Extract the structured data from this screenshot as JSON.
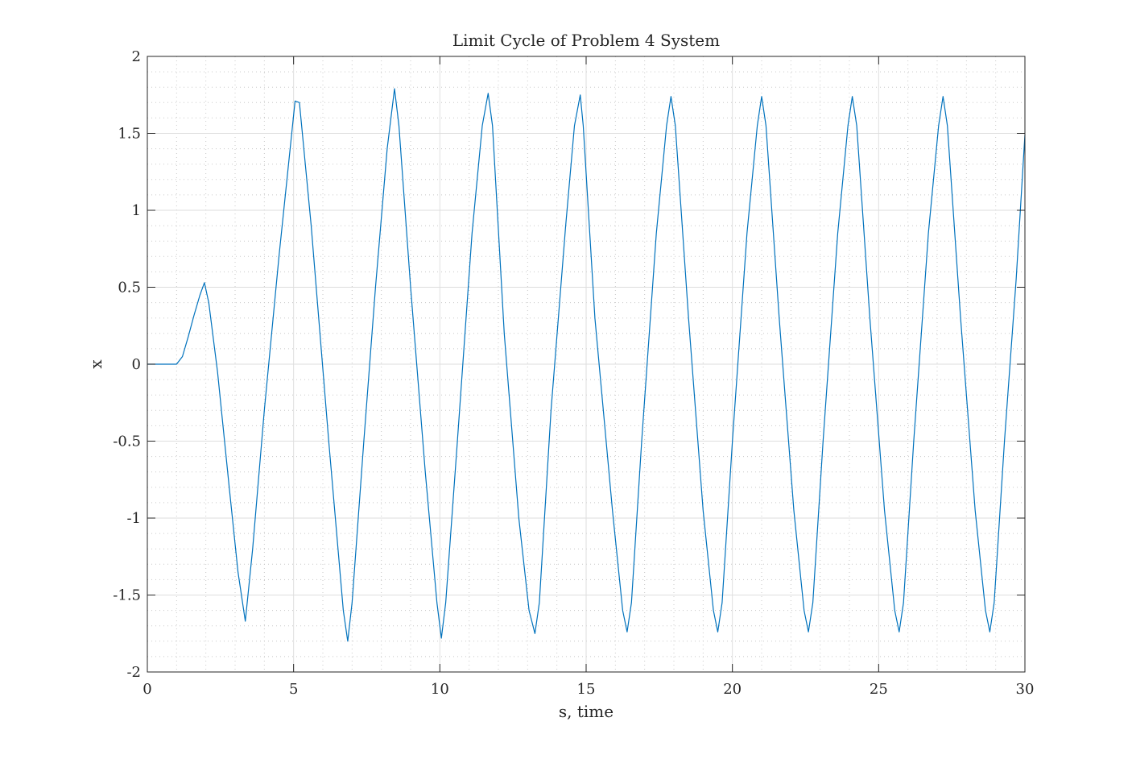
{
  "chart_data": {
    "type": "line",
    "title": "Limit Cycle of Problem 4 System",
    "xlabel": "s, time",
    "ylabel": "x",
    "xlim": [
      0,
      30
    ],
    "ylim": [
      -2,
      2
    ],
    "xticks": [
      0,
      5,
      10,
      15,
      20,
      25,
      30
    ],
    "xtick_labels": [
      "0",
      "5",
      "10",
      "15",
      "20",
      "25",
      "30"
    ],
    "yticks": [
      -2,
      -1.5,
      -1,
      -0.5,
      0,
      0.5,
      1,
      1.5,
      2
    ],
    "ytick_labels": [
      "-2",
      "-1.5",
      "-1",
      "-0.5",
      "0",
      "0.5",
      "1",
      "1.5",
      "2"
    ],
    "grid": true,
    "minor_grid": true,
    "line_color": "#0072BD",
    "series": [
      {
        "x": [
          0,
          1.0,
          1.2,
          1.4,
          1.6,
          1.8,
          1.95,
          2.1,
          2.4,
          2.8,
          3.1,
          3.35,
          3.6,
          4.0,
          4.5,
          5.05,
          5.2,
          5.6,
          6.2,
          6.7,
          6.85,
          7.0,
          7.4,
          7.8,
          8.2,
          8.45,
          8.6,
          9.0,
          9.5,
          9.9,
          10.05,
          10.2,
          10.6,
          11.1,
          11.45,
          11.65,
          11.8,
          12.2,
          12.7,
          13.05,
          13.25,
          13.4,
          13.8,
          14.3,
          14.6,
          14.8,
          14.9,
          15.3,
          15.9,
          16.25,
          16.4,
          16.55,
          16.9,
          17.4,
          17.75,
          17.9,
          18.05,
          18.5,
          19.0,
          19.35,
          19.5,
          19.65,
          20.0,
          20.5,
          20.85,
          21.0,
          21.15,
          21.6,
          22.1,
          22.45,
          22.6,
          22.75,
          23.1,
          23.6,
          23.95,
          24.1,
          24.25,
          24.7,
          25.2,
          25.55,
          25.7,
          25.85,
          26.2,
          26.7,
          27.05,
          27.2,
          27.35,
          27.8,
          28.3,
          28.65,
          28.8,
          28.95,
          29.3,
          29.7,
          30.0
        ],
        "y": [
          0,
          0,
          0.05,
          0.18,
          0.32,
          0.45,
          0.53,
          0.4,
          -0.05,
          -0.8,
          -1.35,
          -1.67,
          -1.2,
          -0.3,
          0.7,
          1.71,
          1.7,
          0.9,
          -0.5,
          -1.6,
          -1.8,
          -1.55,
          -0.5,
          0.5,
          1.4,
          1.79,
          1.55,
          0.5,
          -0.7,
          -1.55,
          -1.78,
          -1.55,
          -0.5,
          0.85,
          1.55,
          1.76,
          1.55,
          0.2,
          -1.0,
          -1.6,
          -1.75,
          -1.55,
          -0.3,
          0.9,
          1.55,
          1.75,
          1.55,
          0.3,
          -0.95,
          -1.6,
          -1.74,
          -1.55,
          -0.5,
          0.85,
          1.55,
          1.74,
          1.55,
          0.3,
          -0.95,
          -1.6,
          -1.74,
          -1.55,
          -0.5,
          0.85,
          1.55,
          1.74,
          1.55,
          0.3,
          -0.95,
          -1.6,
          -1.74,
          -1.55,
          -0.5,
          0.85,
          1.55,
          1.74,
          1.55,
          0.3,
          -0.95,
          -1.6,
          -1.74,
          -1.55,
          -0.5,
          0.85,
          1.55,
          1.74,
          1.55,
          0.3,
          -0.95,
          -1.6,
          -1.74,
          -1.55,
          -0.5,
          0.55,
          1.49
        ]
      }
    ]
  }
}
